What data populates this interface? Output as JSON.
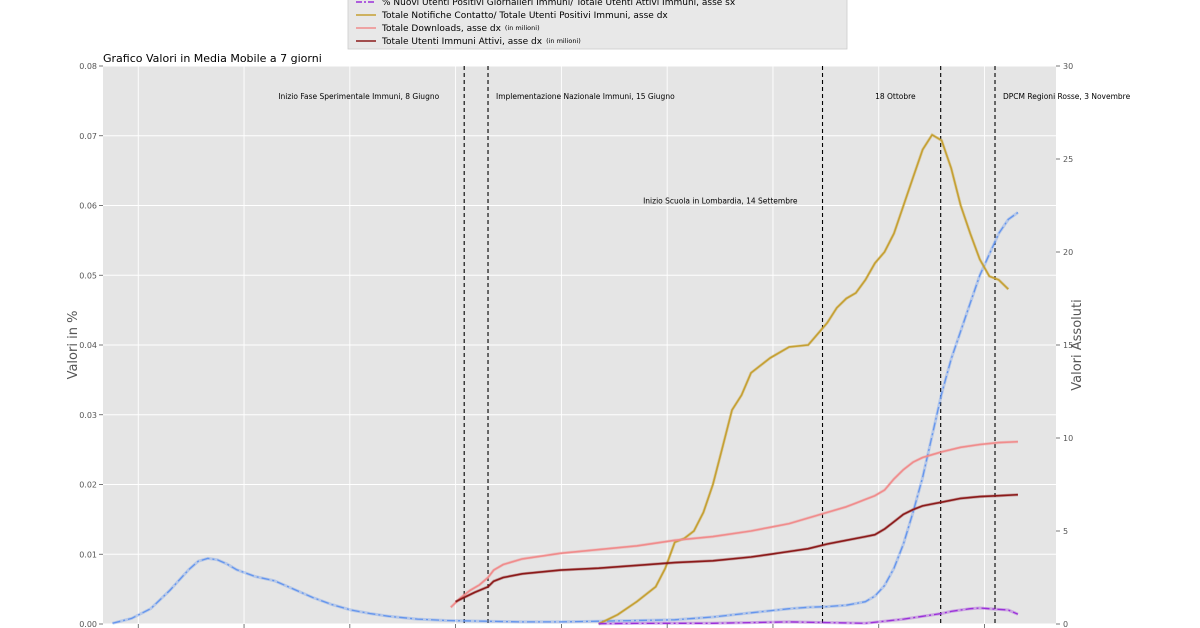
{
  "chart_data": {
    "type": "line",
    "title": "Grafico Valori in Media Mobile a 7 giorni",
    "ylabel_left": "Valori in %",
    "ylabel_right": "Valori Assoluti",
    "ylim_left": [
      0,
      0.08
    ],
    "ylim_right": [
      0,
      30
    ],
    "yticks_left": [
      "0.00",
      "0.01",
      "0.02",
      "0.03",
      "0.04",
      "0.05",
      "0.06",
      "0.07",
      "0.08"
    ],
    "yticks_right": [
      "0",
      "5",
      "10",
      "15",
      "20",
      "25",
      "30"
    ],
    "grid": true,
    "legend_position": "top-center",
    "legend": [
      {
        "label": "% Nuovi Utenti Positivi Giornalieri Immuni/ Totale Utenti Attivi Immuni, asse sx",
        "note": "",
        "color": "#9b30d9",
        "style": "dashdot"
      },
      {
        "label": "Totale Notifiche Contatto/ Totale Utenti Positivi Immuni, asse dx",
        "note": "",
        "color": "#c5a033",
        "style": "solid"
      },
      {
        "label": "Totale Downloads, asse dx",
        "note": "(in milioni)",
        "color": "#f08c8c",
        "style": "solid"
      },
      {
        "label": "Totale Utenti Immuni Attivi, asse dx",
        "note": "(in milioni)",
        "color": "#8b1a1a",
        "style": "solid"
      }
    ],
    "x_domain": [
      0,
      100
    ],
    "vlines": [
      {
        "x": 37.9,
        "label": "Inizio Fase Sperimentale Immuni, 8 Giugno",
        "anchor": "end",
        "label_y": 0.0753
      },
      {
        "x": 40.4,
        "label": "Implementazione Nazionale Immuni, 15 Giugno",
        "anchor": "start",
        "label_y": 0.0753
      },
      {
        "x": 75.5,
        "label": "Inizio Scuola in Lombardia, 14 Settembre",
        "anchor": "end",
        "label_y": 0.0603
      },
      {
        "x": 87.9,
        "label": "18 Ottobre",
        "anchor": "end",
        "label_y": 0.0753
      },
      {
        "x": 93.6,
        "label": "DPCM Regioni Rosse, 3 Novembre",
        "anchor": "start",
        "label_y": 0.0753
      }
    ],
    "series": [
      {
        "name": "Nuovi Positivi % (blue)",
        "axis": "left",
        "color": "#6495ed",
        "style": "dashdot",
        "x": [
          1,
          3,
          5,
          7,
          9,
          10,
          11,
          12,
          13,
          14,
          16,
          18,
          20,
          22,
          24,
          26,
          28,
          30,
          33,
          36,
          40,
          44,
          48,
          52,
          56,
          60,
          64,
          68,
          72,
          74,
          76,
          78,
          80,
          81,
          82,
          83,
          84,
          85,
          86,
          87,
          88,
          89,
          90,
          91,
          92,
          93,
          94,
          95,
          96
        ],
        "y": [
          0.0001,
          0.0008,
          0.0022,
          0.0048,
          0.0078,
          0.009,
          0.0094,
          0.0092,
          0.0086,
          0.0078,
          0.0068,
          0.0062,
          0.005,
          0.0038,
          0.0028,
          0.002,
          0.0015,
          0.0011,
          0.0007,
          0.0005,
          0.0004,
          0.0003,
          0.0003,
          0.0004,
          0.0005,
          0.0006,
          0.001,
          0.0016,
          0.0022,
          0.0024,
          0.0025,
          0.0027,
          0.0032,
          0.004,
          0.0055,
          0.008,
          0.0115,
          0.016,
          0.021,
          0.027,
          0.033,
          0.038,
          0.042,
          0.046,
          0.05,
          0.053,
          0.056,
          0.058,
          0.059
        ]
      },
      {
        "name": "Notifiche / Positivi (gold)",
        "axis": "right",
        "color": "#c5a033",
        "style": "solid",
        "x": [
          52,
          54,
          56,
          57,
          58,
          59,
          60,
          61,
          62,
          63,
          64,
          65,
          66,
          67,
          68,
          70,
          72,
          74,
          75,
          76,
          77,
          78,
          79,
          80,
          81,
          82,
          83,
          84,
          85,
          86,
          87,
          88,
          89,
          90,
          91,
          92,
          93,
          94,
          95
        ],
        "y": [
          0.0,
          0.5,
          1.2,
          1.6,
          2.0,
          3.0,
          4.4,
          4.6,
          5.0,
          6.0,
          7.5,
          9.5,
          11.5,
          12.3,
          13.5,
          14.3,
          14.9,
          15.0,
          15.6,
          16.2,
          17.0,
          17.5,
          17.8,
          18.5,
          19.4,
          20.0,
          21.0,
          22.5,
          24.0,
          25.5,
          26.3,
          26.0,
          24.5,
          22.5,
          21.0,
          19.6,
          18.7,
          18.5,
          18.0
        ]
      },
      {
        "name": "Downloads (salmon)",
        "axis": "right",
        "color": "#f08c8c",
        "style": "solid",
        "x": [
          36.5,
          37.5,
          38.5,
          39.5,
          40.4,
          41,
          42,
          44,
          48,
          52,
          56,
          60,
          64,
          68,
          70,
          72,
          74,
          76,
          78,
          79,
          80,
          81,
          82,
          83,
          84,
          85,
          86,
          87,
          88,
          90,
          92,
          94,
          96
        ],
        "y": [
          0.9,
          1.4,
          1.8,
          2.1,
          2.5,
          2.9,
          3.2,
          3.5,
          3.8,
          4.0,
          4.2,
          4.5,
          4.7,
          5.0,
          5.2,
          5.4,
          5.7,
          6.0,
          6.3,
          6.5,
          6.7,
          6.9,
          7.2,
          7.8,
          8.3,
          8.7,
          8.95,
          9.1,
          9.25,
          9.5,
          9.65,
          9.75,
          9.8
        ]
      },
      {
        "name": "Utenti Attivi (dark red)",
        "axis": "right",
        "color": "#8b1a1a",
        "style": "solid",
        "x": [
          37.0,
          38.0,
          39.0,
          40.4,
          41,
          42,
          44,
          48,
          52,
          56,
          60,
          64,
          68,
          70,
          72,
          74,
          76,
          78,
          80,
          81,
          82,
          83,
          84,
          85,
          86,
          87,
          88,
          90,
          92,
          94,
          96
        ],
        "y": [
          1.2,
          1.45,
          1.7,
          2.0,
          2.3,
          2.5,
          2.7,
          2.9,
          3.0,
          3.15,
          3.3,
          3.4,
          3.6,
          3.75,
          3.9,
          4.05,
          4.3,
          4.5,
          4.7,
          4.8,
          5.1,
          5.5,
          5.9,
          6.15,
          6.35,
          6.45,
          6.55,
          6.75,
          6.85,
          6.9,
          6.95
        ]
      },
      {
        "name": "% Nuovi Positivi Immuni (purple)",
        "axis": "left",
        "color": "#9b30d9",
        "style": "dashdot",
        "x": [
          52,
          56,
          60,
          64,
          68,
          72,
          76,
          80,
          82,
          84,
          86,
          88,
          89,
          90,
          91,
          92,
          93,
          94,
          95,
          96
        ],
        "y": [
          5e-05,
          8e-05,
          0.0001,
          0.0001,
          0.0002,
          0.0003,
          0.0002,
          0.0001,
          0.0004,
          0.0007,
          0.0011,
          0.0015,
          0.0018,
          0.002,
          0.0022,
          0.0023,
          0.0022,
          0.0021,
          0.002,
          0.0014
        ]
      }
    ]
  }
}
